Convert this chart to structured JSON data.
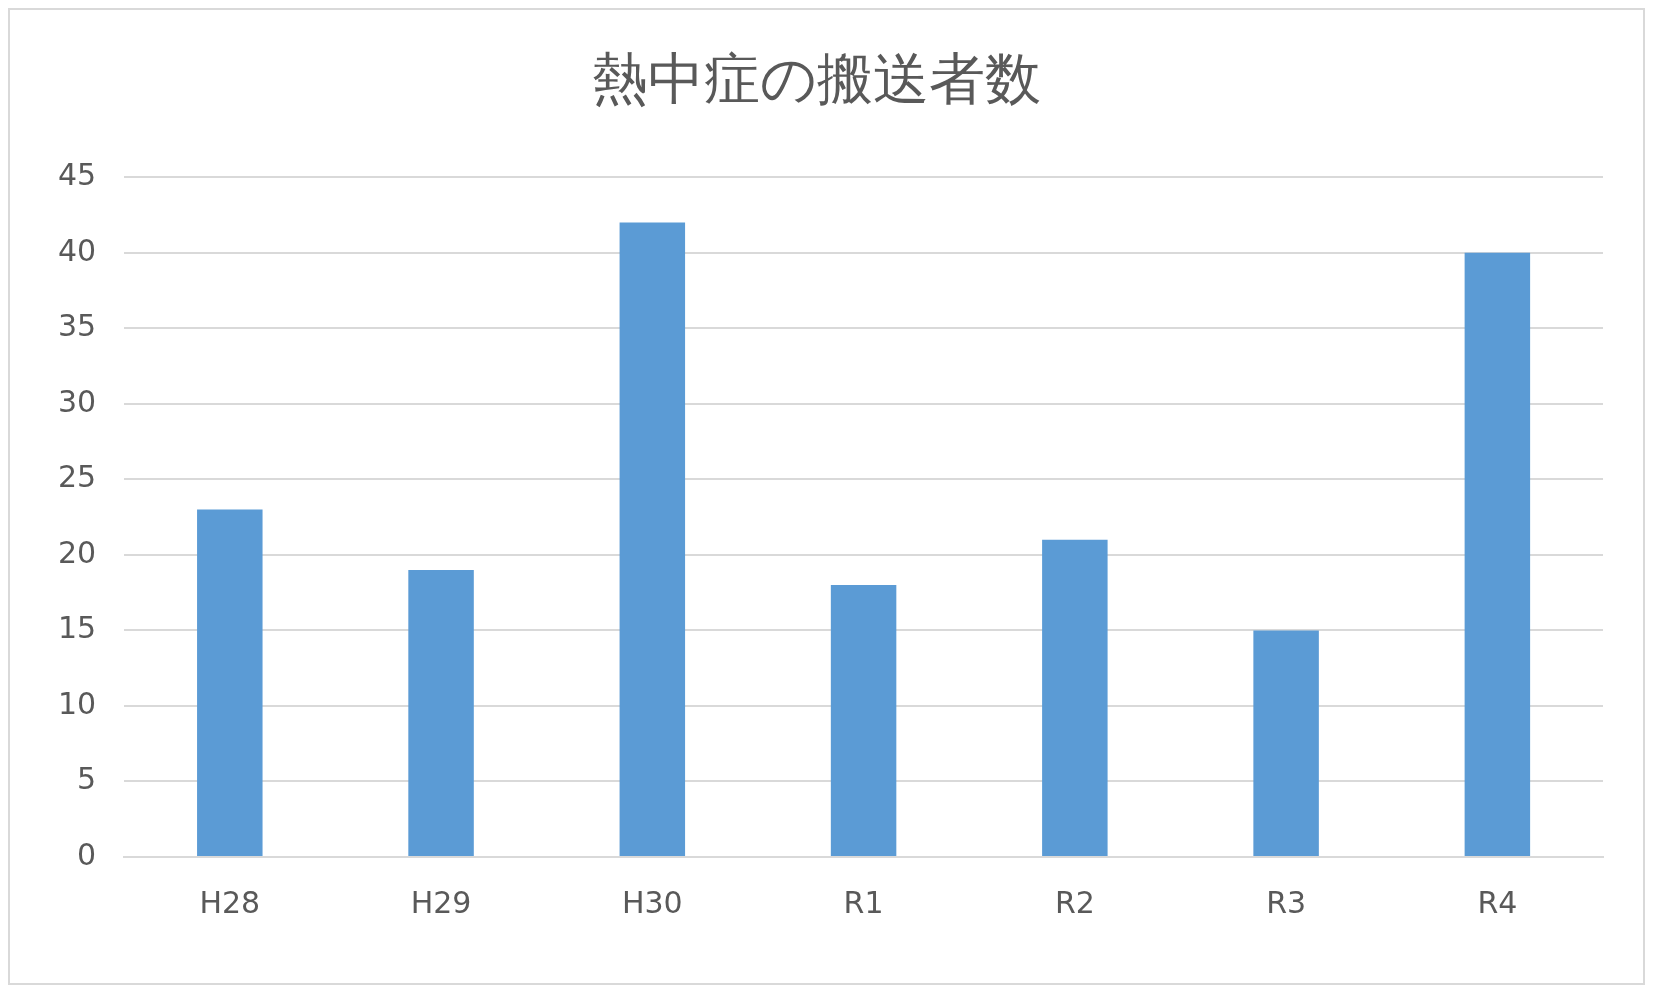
{
  "chart_data": {
    "type": "bar",
    "title": "熱中症の搬送者数",
    "categories": [
      "H28",
      "H29",
      "H30",
      "R1",
      "R2",
      "R3",
      "R4"
    ],
    "values": [
      23,
      19,
      42,
      18,
      21,
      15,
      40
    ],
    "color": "#5b9bd5",
    "ylim": [
      0,
      45
    ],
    "yticks": [
      0,
      5,
      10,
      15,
      20,
      25,
      30,
      35,
      40,
      45
    ],
    "grid": "y",
    "legend": false
  }
}
